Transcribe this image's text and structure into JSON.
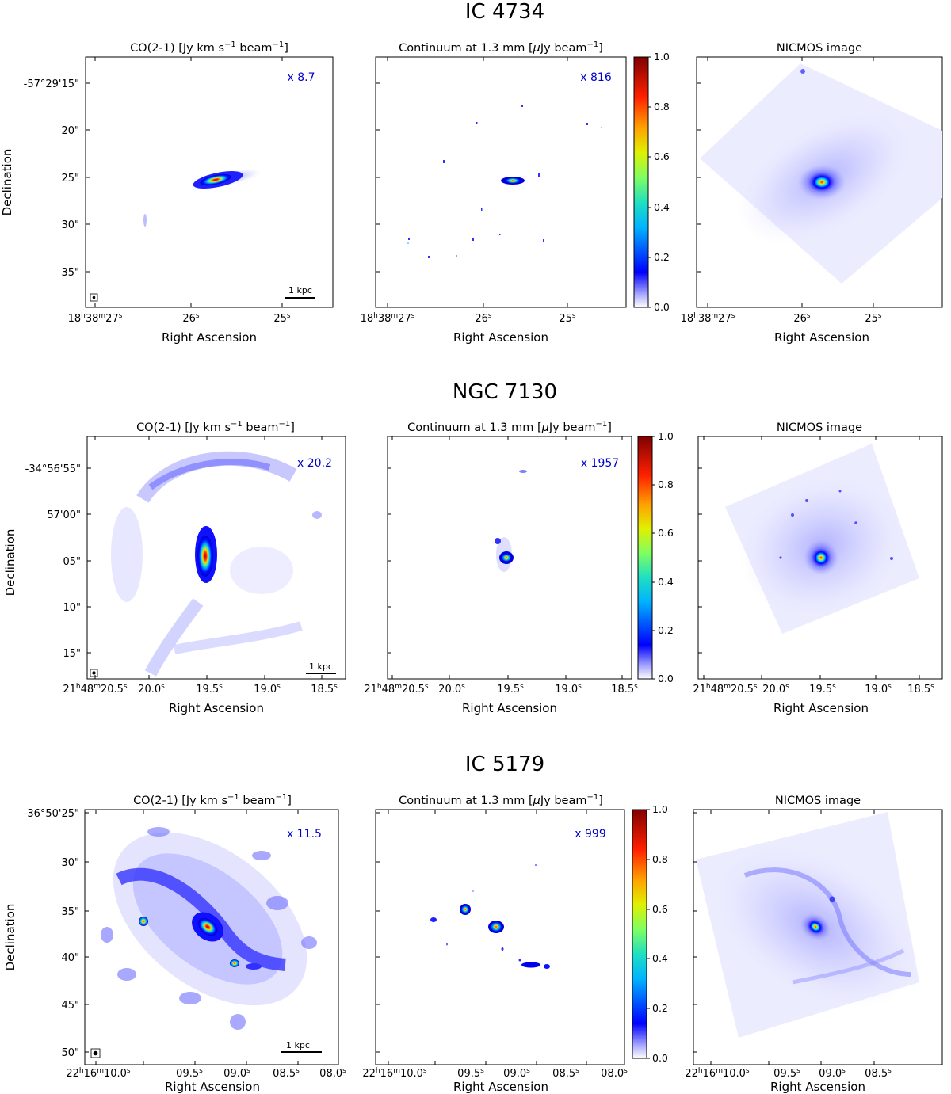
{
  "groups": [
    {
      "name": "IC 4734",
      "ylabel": "Declination",
      "panels": [
        {
          "title": "CO(2-1) [Jy km s",
          "title_sup1": "−1",
          "title_mid": " beam",
          "title_sup2": "−1",
          "title_end": "]",
          "factor": "x 8.7",
          "scalebar": "1 kpc",
          "xticks": [
            {
              "h": "18",
              "m": "38",
              "s": "27"
            },
            {
              "s": "26"
            },
            {
              "s": "25"
            }
          ],
          "xlabel": "Right Ascension",
          "yticks": [
            "-57°29'15\"",
            "20\"",
            "25\"",
            "30\"",
            "35\""
          ]
        },
        {
          "title": "Continuum at 1.3 mm [",
          "title_mu": "μ",
          "title_mid": "Jy beam",
          "title_sup2": "−1",
          "title_end": "]",
          "factor": "x 816",
          "xticks": [
            {
              "h": "18",
              "m": "38",
              "s": "27"
            },
            {
              "s": "26"
            },
            {
              "s": "25"
            }
          ],
          "xlabel": "Right Ascension"
        },
        {
          "title": "NICMOS image",
          "xticks": [
            {
              "h": "18",
              "m": "38",
              "s": "27"
            },
            {
              "s": "26"
            },
            {
              "s": "25"
            }
          ],
          "xlabel": "Right Ascension"
        }
      ]
    },
    {
      "name": "NGC 7130",
      "ylabel": "Declination",
      "panels": [
        {
          "title": "CO(2-1) [Jy km s",
          "title_sup1": "−1",
          "title_mid": " beam",
          "title_sup2": "−1",
          "title_end": "]",
          "factor": "x 20.2",
          "scalebar": "1 kpc",
          "xticks": [
            {
              "h": "21",
              "m": "48",
              "s": "20.5"
            },
            {
              "s": "20.0"
            },
            {
              "s": "19.5"
            },
            {
              "s": "19.0"
            },
            {
              "s": "18.5"
            }
          ],
          "xlabel": "Right Ascension",
          "yticks": [
            "-34°56'55\"",
            "57'00\"",
            "05\"",
            "10\"",
            "15\""
          ]
        },
        {
          "title": "Continuum at 1.3 mm [",
          "title_mu": "μ",
          "title_mid": "Jy beam",
          "title_sup2": "−1",
          "title_end": "]",
          "factor": "x 1957",
          "xticks": [
            {
              "h": "21",
              "m": "48",
              "s": "20.5"
            },
            {
              "s": "20.0"
            },
            {
              "s": "19.5"
            },
            {
              "s": "19.0"
            },
            {
              "s": "18.5"
            }
          ],
          "xlabel": "Right Ascension"
        },
        {
          "title": "NICMOS image",
          "xticks": [
            {
              "h": "21",
              "m": "48",
              "s": "20.5"
            },
            {
              "s": "20.0"
            },
            {
              "s": "19.5"
            },
            {
              "s": "19.0"
            },
            {
              "s": "18.5"
            }
          ],
          "xlabel": "Right Ascension"
        }
      ]
    },
    {
      "name": "IC 5179",
      "ylabel": "Declination",
      "panels": [
        {
          "title": "CO(2-1) [Jy km s",
          "title_sup1": "−1",
          "title_mid": " beam",
          "title_sup2": "−1",
          "title_end": "]",
          "factor": "x 11.5",
          "scalebar": "1 kpc",
          "xticks": [
            {
              "h": "22",
              "m": "16",
              "s": "10.0"
            },
            {
              "s": "09.5"
            },
            {
              "s": "09.0"
            },
            {
              "s": "08.5"
            },
            {
              "s": "08.0"
            }
          ],
          "xlabel": "Right Ascension",
          "yticks": [
            "-36°50'25\"",
            "30\"",
            "35\"",
            "40\"",
            "45\"",
            "50\""
          ]
        },
        {
          "title": "Continuum at 1.3 mm [",
          "title_mu": "μ",
          "title_mid": "Jy beam",
          "title_sup2": "−1",
          "title_end": "]",
          "factor": "x 999",
          "xticks": [
            {
              "h": "22",
              "m": "16",
              "s": "10.0"
            },
            {
              "s": "09.5"
            },
            {
              "s": "09.0"
            },
            {
              "s": "08.5"
            },
            {
              "s": "08.0"
            }
          ],
          "xlabel": "Right Ascension"
        },
        {
          "title": "NICMOS image",
          "xticks": [
            {
              "h": "22",
              "m": "16",
              "s": "10.0"
            },
            {
              "s": "09.5"
            },
            {
              "s": "09.0"
            },
            {
              "s": "08.5"
            }
          ],
          "xlabel": "Right Ascension"
        }
      ]
    }
  ],
  "colorbar": {
    "ticks": [
      "0.0",
      "0.2",
      "0.4",
      "0.6",
      "0.8",
      "1.0"
    ],
    "colormap": "jet-with-white-base"
  }
}
